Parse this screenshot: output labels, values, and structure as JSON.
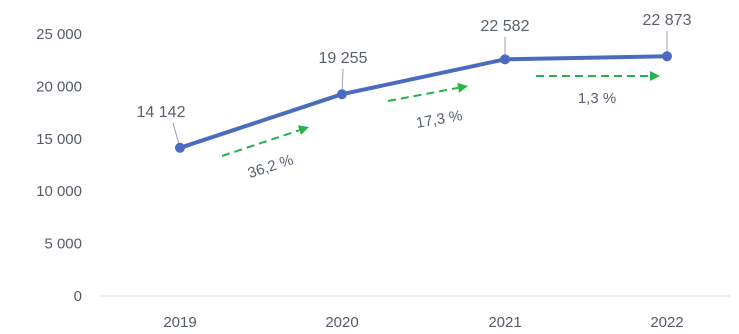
{
  "chart_data": {
    "type": "line",
    "categories": [
      "2019",
      "2020",
      "2021",
      "2022"
    ],
    "values": [
      14142,
      19255,
      22582,
      22873
    ],
    "value_labels": [
      "14 142",
      "19 255",
      "22 582",
      "22 873"
    ],
    "y_ticks": [
      "0",
      "5 000",
      "10 000",
      "15 000",
      "20 000",
      "25 000"
    ],
    "ylim": [
      0,
      25000
    ],
    "growth": [
      "36,2 %",
      "17,3 %",
      "1,3 %"
    ],
    "grid": false,
    "colors": {
      "line": "#4a6bbf",
      "arrow": "#27b34a",
      "label": "#5a606b"
    }
  }
}
